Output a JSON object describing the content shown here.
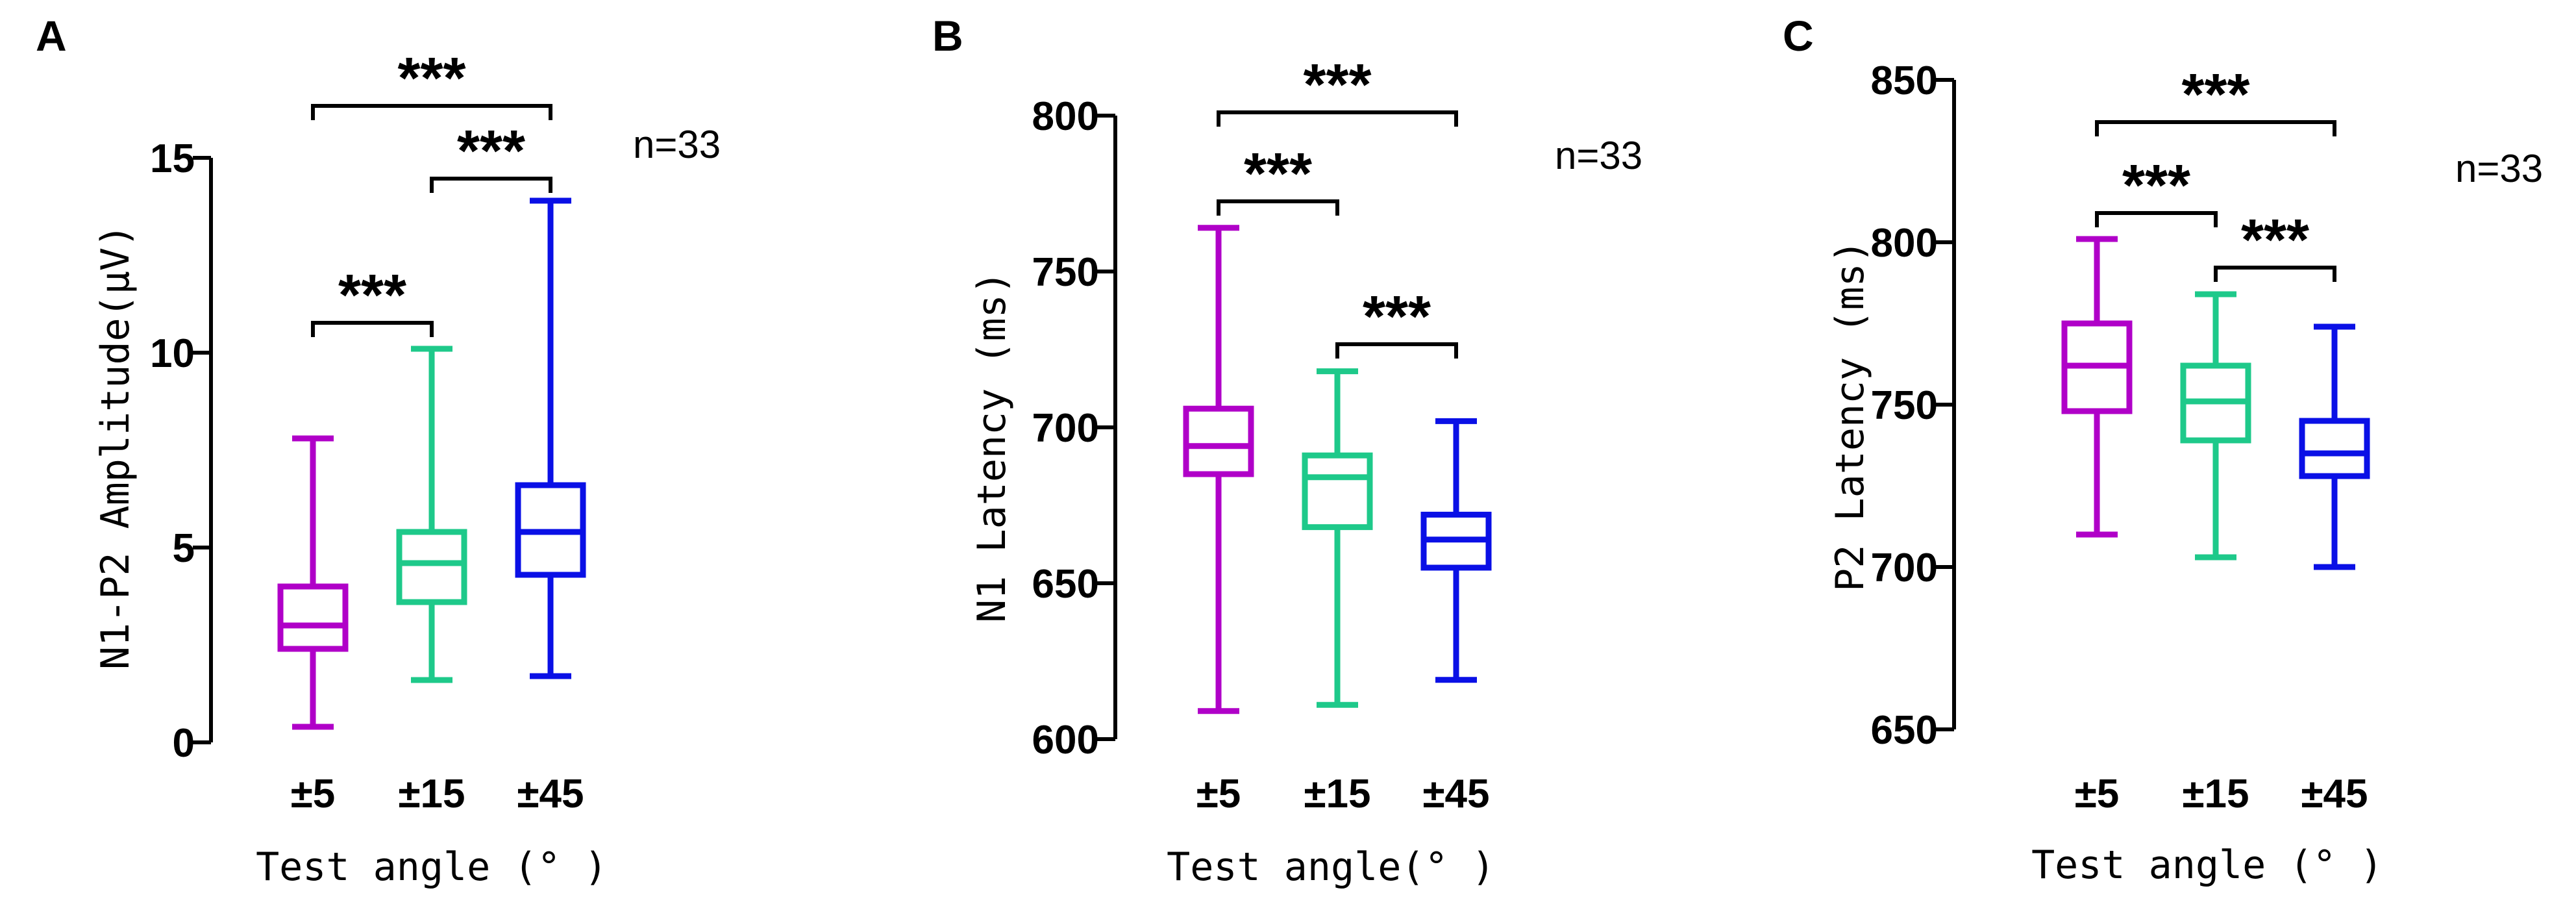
{
  "colors": {
    "c5": "#b000c8",
    "c15": "#1ec98a",
    "c45": "#0a10e6"
  },
  "chart_data": [
    {
      "type": "box",
      "panel": "A",
      "ylabel": "N1-P2 Amplitude(μV)",
      "xlabel": "Test angle (° )",
      "annotation": "n=33",
      "ylim": [
        0,
        15
      ],
      "yticks": [
        "0",
        "5",
        "10",
        "15"
      ],
      "ytick_values": [
        0,
        5,
        10,
        15
      ],
      "categories": [
        "±5",
        "±15",
        "±45"
      ],
      "boxes": [
        {
          "category": "±5",
          "min": 0.4,
          "q1": 2.4,
          "median": 3.0,
          "q3": 4.0,
          "max": 7.8
        },
        {
          "category": "±15",
          "min": 1.6,
          "q1": 3.6,
          "median": 4.6,
          "q3": 5.4,
          "max": 10.1
        },
        {
          "category": "±45",
          "min": 1.7,
          "q1": 4.3,
          "median": 5.4,
          "q3": 6.6,
          "max": 13.9
        }
      ],
      "significance": [
        {
          "from": 0,
          "to": 1,
          "label": "***"
        },
        {
          "from": 1,
          "to": 2,
          "label": "***"
        },
        {
          "from": 0,
          "to": 2,
          "label": "***"
        }
      ]
    },
    {
      "type": "box",
      "panel": "B",
      "ylabel": "N1 Latency (ms)",
      "xlabel": "Test angle(° )",
      "annotation": "n=33",
      "ylim": [
        600,
        800
      ],
      "yticks": [
        "600",
        "650",
        "700",
        "750",
        "800"
      ],
      "ytick_values": [
        600,
        650,
        700,
        750,
        800
      ],
      "categories": [
        "±5",
        "±15",
        "±45"
      ],
      "boxes": [
        {
          "category": "±5",
          "min": 609,
          "q1": 685,
          "median": 694,
          "q3": 706,
          "max": 764
        },
        {
          "category": "±15",
          "min": 611,
          "q1": 668,
          "median": 684,
          "q3": 691,
          "max": 718
        },
        {
          "category": "±45",
          "min": 619,
          "q1": 655,
          "median": 664,
          "q3": 672,
          "max": 702
        }
      ],
      "significance": [
        {
          "from": 0,
          "to": 1,
          "label": "***"
        },
        {
          "from": 1,
          "to": 2,
          "label": "***"
        },
        {
          "from": 0,
          "to": 2,
          "label": "***"
        }
      ]
    },
    {
      "type": "box",
      "panel": "C",
      "ylabel": "P2 Latency (ms)",
      "xlabel": "Test angle (° )",
      "annotation": "n=33",
      "ylim": [
        650,
        850
      ],
      "yticks": [
        "650",
        "700",
        "750",
        "800",
        "850"
      ],
      "ytick_values": [
        650,
        700,
        750,
        800,
        850
      ],
      "categories": [
        "±5",
        "±15",
        "±45"
      ],
      "boxes": [
        {
          "category": "±5",
          "min": 710,
          "q1": 748,
          "median": 762,
          "q3": 775,
          "max": 801
        },
        {
          "category": "±15",
          "min": 703,
          "q1": 739,
          "median": 751,
          "q3": 762,
          "max": 784
        },
        {
          "category": "±45",
          "min": 700,
          "q1": 728,
          "median": 735,
          "q3": 745,
          "max": 774
        }
      ],
      "significance": [
        {
          "from": 0,
          "to": 1,
          "label": "***"
        },
        {
          "from": 1,
          "to": 2,
          "label": "***"
        },
        {
          "from": 0,
          "to": 2,
          "label": "***"
        }
      ]
    }
  ]
}
